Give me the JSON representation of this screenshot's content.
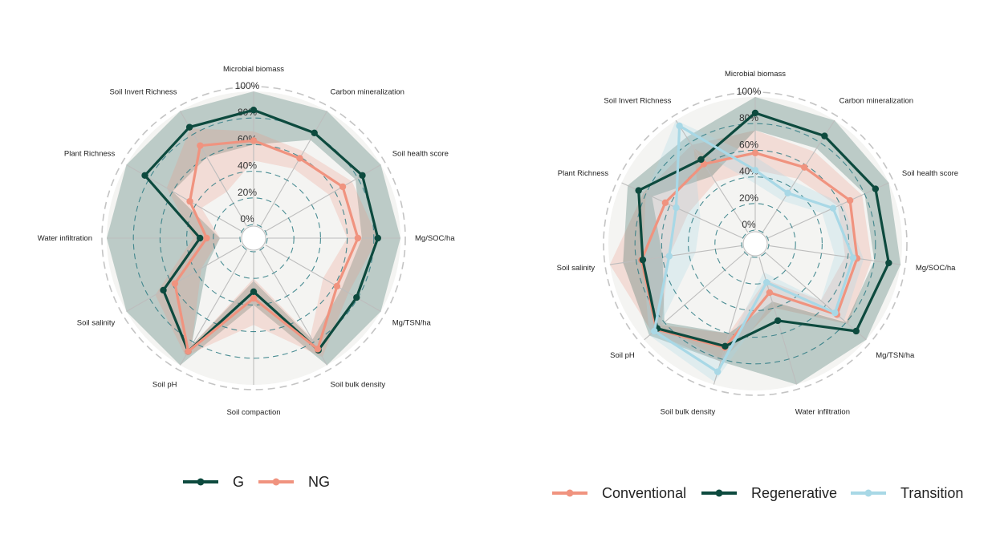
{
  "colors": {
    "G": "#0d4a3e",
    "NG": "#f0937f",
    "Conventional": "#f0937f",
    "Regenerative": "#0d4a3e",
    "Transition": "#a8d8e6",
    "grid_dash": "#2b7a82",
    "spoke": "#bdbdbd",
    "outer_ring": "#c4c4c4",
    "panel_bg": "#f4f4f2"
  },
  "chart_data": [
    {
      "type": "radar",
      "rlim": [
        0,
        100
      ],
      "ticks": [
        "0%",
        "20%",
        "40%",
        "60%",
        "80%",
        "100%"
      ],
      "tick_values": [
        0,
        20,
        40,
        60,
        80,
        100
      ],
      "axes": [
        "Microbial biomass",
        "Carbon mineralization",
        "Soil health score",
        "Mg/SOC/ha",
        "Mg/TSN/ha",
        "Soil bulk density",
        "Soil compaction",
        "Soil pH",
        "Soil salinity",
        "Water infiltration",
        "Plant Richness",
        "Soil Invert Richness"
      ],
      "series": [
        {
          "name": "G",
          "values": [
            86,
            81,
            84,
            83,
            79,
            87,
            30,
            88,
            68,
            30,
            84,
            86
          ],
          "band_low": [
            60,
            75,
            78,
            71,
            66,
            78,
            22,
            83,
            30,
            15,
            60,
            60
          ],
          "band_high": [
            100,
            100,
            100,
            100,
            100,
            100,
            40,
            100,
            100,
            100,
            100,
            100
          ]
        },
        {
          "name": "NG",
          "values": [
            63,
            59,
            67,
            68,
            62,
            86,
            35,
            88,
            58,
            25,
            45,
            70
          ],
          "band_low": [
            48,
            50,
            55,
            60,
            50,
            75,
            20,
            83,
            35,
            15,
            35,
            30
          ],
          "band_high": [
            70,
            65,
            75,
            83,
            72,
            93,
            55,
            92,
            75,
            35,
            65,
            85
          ]
        }
      ]
    },
    {
      "type": "radar",
      "rlim": [
        0,
        100
      ],
      "ticks": [
        "0%",
        "20%",
        "40%",
        "60%",
        "80%",
        "100%"
      ],
      "tick_values": [
        0,
        20,
        40,
        60,
        80,
        100
      ],
      "axes": [
        "Microbial biomass",
        "Carbon mineralization",
        "Soil health score",
        "Mg/SOC/ha",
        "Mg/TSN/ha",
        "Water infiltration",
        "Soil bulk density",
        "Soil pH",
        "Soil salinity",
        "Plant Richness",
        "Soil Invert Richness"
      ],
      "series": [
        {
          "name": "Conventional",
          "values": [
            58,
            58,
            68,
            67,
            71,
            28,
            71,
            88,
            76,
            64,
            61
          ],
          "band_low": [
            45,
            48,
            58,
            58,
            55,
            18,
            60,
            83,
            55,
            45,
            45
          ],
          "band_high": [
            75,
            72,
            78,
            78,
            82,
            40,
            82,
            92,
            100,
            82,
            78
          ]
        },
        {
          "name": "Regenerative",
          "values": [
            88,
            86,
            89,
            91,
            90,
            50,
            70,
            87,
            75,
            86,
            65
          ],
          "band_low": [
            75,
            75,
            80,
            80,
            80,
            35,
            60,
            80,
            60,
            75,
            50
          ],
          "band_high": [
            100,
            100,
            100,
            100,
            100,
            100,
            82,
            95,
            90,
            95,
            85
          ]
        },
        {
          "name": "Transition",
          "values": [
            45,
            35,
            54,
            64,
            69,
            20,
            90,
            90,
            55,
            55,
            95
          ],
          "band_low": [
            35,
            28,
            45,
            50,
            55,
            12,
            80,
            85,
            35,
            35,
            75
          ],
          "band_high": [
            55,
            45,
            62,
            72,
            78,
            35,
            98,
            95,
            75,
            80,
            100
          ]
        }
      ]
    }
  ],
  "legend1": [
    {
      "label": "G",
      "color": "#0d4a3e"
    },
    {
      "label": "NG",
      "color": "#f0937f"
    }
  ],
  "legend2": [
    {
      "label": "Conventional",
      "color": "#f0937f"
    },
    {
      "label": "Regenerative",
      "color": "#0d4a3e"
    },
    {
      "label": "Transition",
      "color": "#a8d8e6"
    }
  ]
}
